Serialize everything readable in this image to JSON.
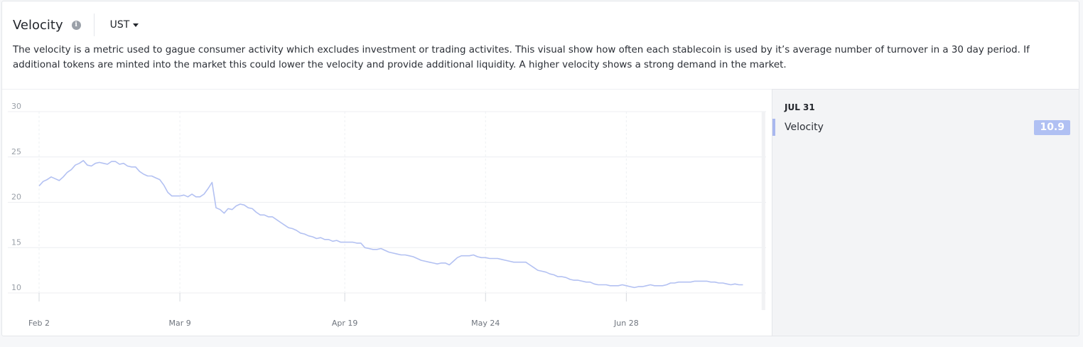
{
  "header": {
    "title": "Velocity",
    "info_icon": "info-icon",
    "token_selected": "UST"
  },
  "description": "The velocity is a metric used to gague consumer activity which excludes investment or trading activites. This visual show how often each stablecoin is used by it’s average number of turnover in a 30 day period. If additional tokens are minted into the market this could lower the velocity and provide additional liquidity. A higher velocity shows a strong demand in the market.",
  "tooltip": {
    "date": "JUL 31",
    "series_label": "Velocity",
    "value": "10.9"
  },
  "colors": {
    "line": "#b3c1f2",
    "tooltip_badge": "#b0c0f3"
  },
  "chart_data": {
    "type": "line",
    "title": "",
    "xlabel": "",
    "ylabel": "",
    "ylim": [
      10,
      30
    ],
    "yticks": [
      10,
      15,
      20,
      25,
      30
    ],
    "xticks": [
      "Feb 2",
      "Mar 9",
      "Apr 19",
      "May 24",
      "Jun 28"
    ],
    "xtick_index": [
      0,
      35,
      76,
      111,
      146
    ],
    "grid": true,
    "hover_index": 180,
    "series": [
      {
        "name": "Velocity",
        "values": [
          21.8,
          22.3,
          22.5,
          22.8,
          22.6,
          22.4,
          22.8,
          23.3,
          23.6,
          24.1,
          24.3,
          24.6,
          24.1,
          24.0,
          24.3,
          24.4,
          24.3,
          24.2,
          24.5,
          24.5,
          24.2,
          24.3,
          24.0,
          23.9,
          23.9,
          23.4,
          23.1,
          22.9,
          22.9,
          22.7,
          22.5,
          21.9,
          21.1,
          20.7,
          20.7,
          20.7,
          20.8,
          20.6,
          20.9,
          20.6,
          20.6,
          20.9,
          21.5,
          22.2,
          19.4,
          19.2,
          18.8,
          19.3,
          19.2,
          19.6,
          19.8,
          19.7,
          19.4,
          19.3,
          18.9,
          18.6,
          18.6,
          18.4,
          18.4,
          18.1,
          17.8,
          17.5,
          17.2,
          17.1,
          16.9,
          16.6,
          16.5,
          16.3,
          16.2,
          16.0,
          16.1,
          15.9,
          15.9,
          15.7,
          15.8,
          15.6,
          15.6,
          15.6,
          15.6,
          15.5,
          15.5,
          15.0,
          14.9,
          14.8,
          14.8,
          14.9,
          14.7,
          14.5,
          14.4,
          14.3,
          14.2,
          14.2,
          14.1,
          14.0,
          13.8,
          13.6,
          13.5,
          13.4,
          13.3,
          13.2,
          13.3,
          13.3,
          13.1,
          13.5,
          13.9,
          14.1,
          14.1,
          14.1,
          14.2,
          14.0,
          13.9,
          13.9,
          13.8,
          13.8,
          13.8,
          13.7,
          13.6,
          13.5,
          13.4,
          13.4,
          13.4,
          13.4,
          13.1,
          12.8,
          12.5,
          12.4,
          12.3,
          12.1,
          12.0,
          11.8,
          11.8,
          11.7,
          11.5,
          11.4,
          11.4,
          11.3,
          11.2,
          11.2,
          11.0,
          10.9,
          10.9,
          10.9,
          10.8,
          10.8,
          10.8,
          10.9,
          10.8,
          10.7,
          10.6,
          10.7,
          10.7,
          10.8,
          10.9,
          10.8,
          10.8,
          10.8,
          10.9,
          11.1,
          11.1,
          11.2,
          11.2,
          11.2,
          11.2,
          11.3,
          11.3,
          11.3,
          11.3,
          11.2,
          11.2,
          11.1,
          11.1,
          11.0,
          10.9,
          11.0,
          10.9,
          10.9
        ]
      }
    ]
  }
}
